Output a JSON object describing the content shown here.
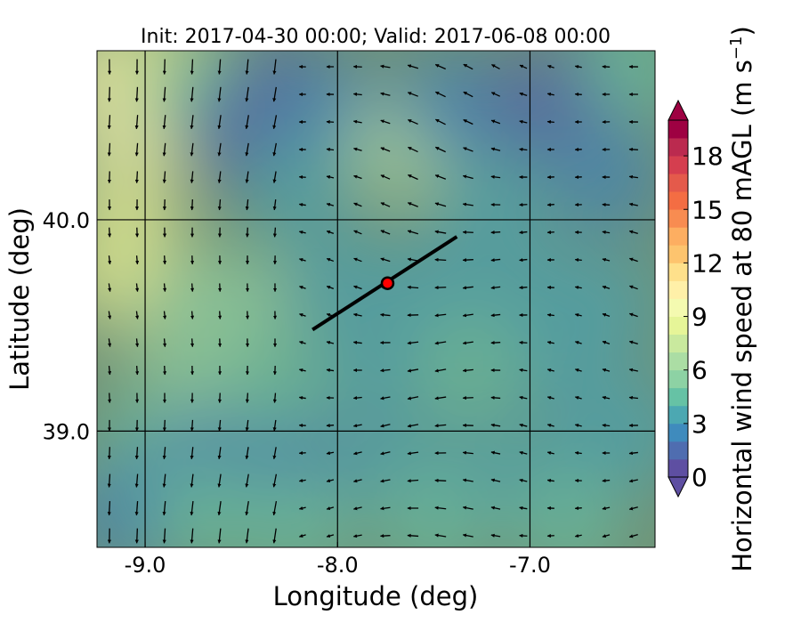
{
  "chart_data": {
    "type": "heatmap",
    "title": "Init: 2017-04-30 00:00; Valid: 2017-06-08 00:00",
    "xlabel": "Longitude (deg)",
    "ylabel": "Latitude (deg)",
    "xlim": [
      -9.25,
      -6.35
    ],
    "ylim": [
      38.45,
      40.8
    ],
    "x_ticks": [
      -9.0,
      -8.0,
      -7.0
    ],
    "x_tick_labels": [
      "-9.0",
      "-8.0",
      "-7.0"
    ],
    "y_ticks": [
      39.0,
      40.0
    ],
    "y_tick_labels": [
      "39.0",
      "40.0"
    ],
    "grid": true,
    "colorbar": {
      "label": "Horizontal wind speed at 80 mAGL (m s",
      "label_superscript": "−1",
      "label_suffix": ")",
      "min": 0,
      "max": 20,
      "extend": "both",
      "ticks": [
        0,
        3,
        6,
        9,
        12,
        15,
        18
      ],
      "tick_labels": [
        "0",
        "3",
        "6",
        "9",
        "12",
        "15",
        "18"
      ],
      "colors": [
        "#5e4fa2",
        "#4f6db0",
        "#3f8bbd",
        "#4ca8b2",
        "#66c2a5",
        "#8dd2a4",
        "#abdda4",
        "#c9e99e",
        "#e6f598",
        "#f4fab0",
        "#fff0a8",
        "#fee08b",
        "#fdc46e",
        "#fdae61",
        "#f88c51",
        "#f46d43",
        "#e45a4b",
        "#d53e4f",
        "#bb2a4f",
        "#9e0142"
      ]
    },
    "field_points": [
      {
        "lon": -9.2,
        "lat": 40.7,
        "speed": 9.5
      },
      {
        "lon": -9.1,
        "lat": 40.4,
        "speed": 9.0
      },
      {
        "lon": -9.1,
        "lat": 40.0,
        "speed": 8.5
      },
      {
        "lon": -9.15,
        "lat": 39.75,
        "speed": 8.0
      },
      {
        "lon": -8.9,
        "lat": 40.75,
        "speed": 8.0
      },
      {
        "lon": -8.7,
        "lat": 40.6,
        "speed": 4.0
      },
      {
        "lon": -8.5,
        "lat": 40.4,
        "speed": 1.5
      },
      {
        "lon": -8.3,
        "lat": 40.6,
        "speed": 1.0
      },
      {
        "lon": -8.0,
        "lat": 40.5,
        "speed": 2.0
      },
      {
        "lon": -7.65,
        "lat": 40.35,
        "speed": 6.0
      },
      {
        "lon": -7.4,
        "lat": 40.55,
        "speed": 2.5
      },
      {
        "lon": -7.0,
        "lat": 40.5,
        "speed": 1.5
      },
      {
        "lon": -6.7,
        "lat": 40.65,
        "speed": 1.5
      },
      {
        "lon": -6.6,
        "lat": 40.2,
        "speed": 2.5
      },
      {
        "lon": -8.2,
        "lat": 40.15,
        "speed": 3.0
      },
      {
        "lon": -7.2,
        "lat": 40.1,
        "speed": 3.0
      },
      {
        "lon": -8.7,
        "lat": 39.6,
        "speed": 5.0
      },
      {
        "lon": -8.5,
        "lat": 39.6,
        "speed": 5.5
      },
      {
        "lon": -8.0,
        "lat": 39.7,
        "speed": 3.0
      },
      {
        "lon": -7.5,
        "lat": 39.7,
        "speed": 3.5
      },
      {
        "lon": -7.0,
        "lat": 39.7,
        "speed": 3.0
      },
      {
        "lon": -6.6,
        "lat": 39.6,
        "speed": 3.5
      },
      {
        "lon": -8.8,
        "lat": 39.3,
        "speed": 5.0
      },
      {
        "lon": -8.3,
        "lat": 39.2,
        "speed": 4.0
      },
      {
        "lon": -7.8,
        "lat": 39.3,
        "speed": 3.5
      },
      {
        "lon": -7.3,
        "lat": 39.3,
        "speed": 4.0
      },
      {
        "lon": -6.8,
        "lat": 39.3,
        "speed": 3.5
      },
      {
        "lon": -9.0,
        "lat": 38.9,
        "speed": 4.5
      },
      {
        "lon": -8.7,
        "lat": 38.85,
        "speed": 2.0
      },
      {
        "lon": -8.2,
        "lat": 38.8,
        "speed": 2.5
      },
      {
        "lon": -7.7,
        "lat": 38.85,
        "speed": 3.0
      },
      {
        "lon": -7.2,
        "lat": 38.8,
        "speed": 3.5
      },
      {
        "lon": -6.7,
        "lat": 38.85,
        "speed": 3.5
      },
      {
        "lon": -9.1,
        "lat": 38.6,
        "speed": 2.0
      },
      {
        "lon": -8.7,
        "lat": 38.6,
        "speed": 4.5
      },
      {
        "lon": -8.2,
        "lat": 38.55,
        "speed": 4.5
      },
      {
        "lon": -7.5,
        "lat": 38.55,
        "speed": 4.5
      },
      {
        "lon": -6.8,
        "lat": 38.55,
        "speed": 4.5
      },
      {
        "lon": -6.45,
        "lat": 40.75,
        "speed": 4.0
      },
      {
        "lon": -6.45,
        "lat": 39.0,
        "speed": 3.0
      }
    ],
    "cross_section_line": {
      "start": [
        -8.13,
        39.48
      ],
      "end": [
        -7.38,
        39.92
      ]
    },
    "marker": {
      "lon": -7.74,
      "lat": 39.7,
      "color": "#ff0000"
    }
  }
}
